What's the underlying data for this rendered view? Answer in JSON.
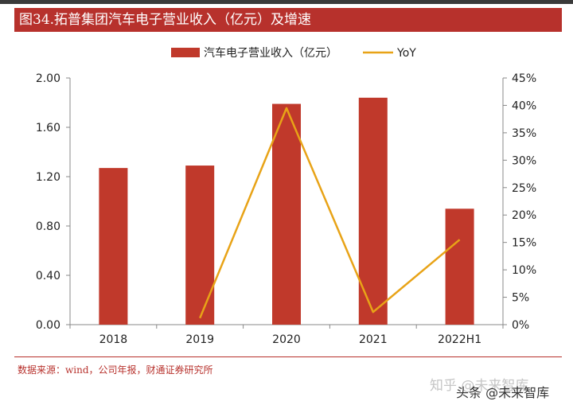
{
  "title": "图34.拓普集团汽车电子营业收入（亿元）及增速",
  "source": "数据来源：wind，公司年报，财通证券研究所",
  "watermark": {
    "line1": "知乎 @未来智库",
    "line2": "头条 @未来智库"
  },
  "colors": {
    "bar": "#c0392b",
    "line": "#e8a317",
    "title_bg": "#b7312c"
  },
  "chart_data": {
    "type": "bar",
    "categories": [
      "2018",
      "2019",
      "2020",
      "2021",
      "2022H1"
    ],
    "series": [
      {
        "name": "汽车电子营业收入（亿元）",
        "type": "bar",
        "axis": "left",
        "values": [
          1.27,
          1.29,
          1.79,
          1.84,
          0.94
        ]
      },
      {
        "name": "YoY",
        "type": "line",
        "axis": "right",
        "values": [
          null,
          0.012,
          0.395,
          0.023,
          0.155
        ]
      }
    ],
    "y_left": {
      "min": 0,
      "max": 2.0,
      "ticks": [
        "0.00",
        "0.40",
        "0.80",
        "1.20",
        "1.60",
        "2.00"
      ]
    },
    "y_right": {
      "min": 0,
      "max": 0.45,
      "ticks": [
        "0%",
        "5%",
        "10%",
        "15%",
        "20%",
        "25%",
        "30%",
        "35%",
        "40%",
        "45%"
      ]
    },
    "legend_position": "top-center",
    "grid": false
  }
}
